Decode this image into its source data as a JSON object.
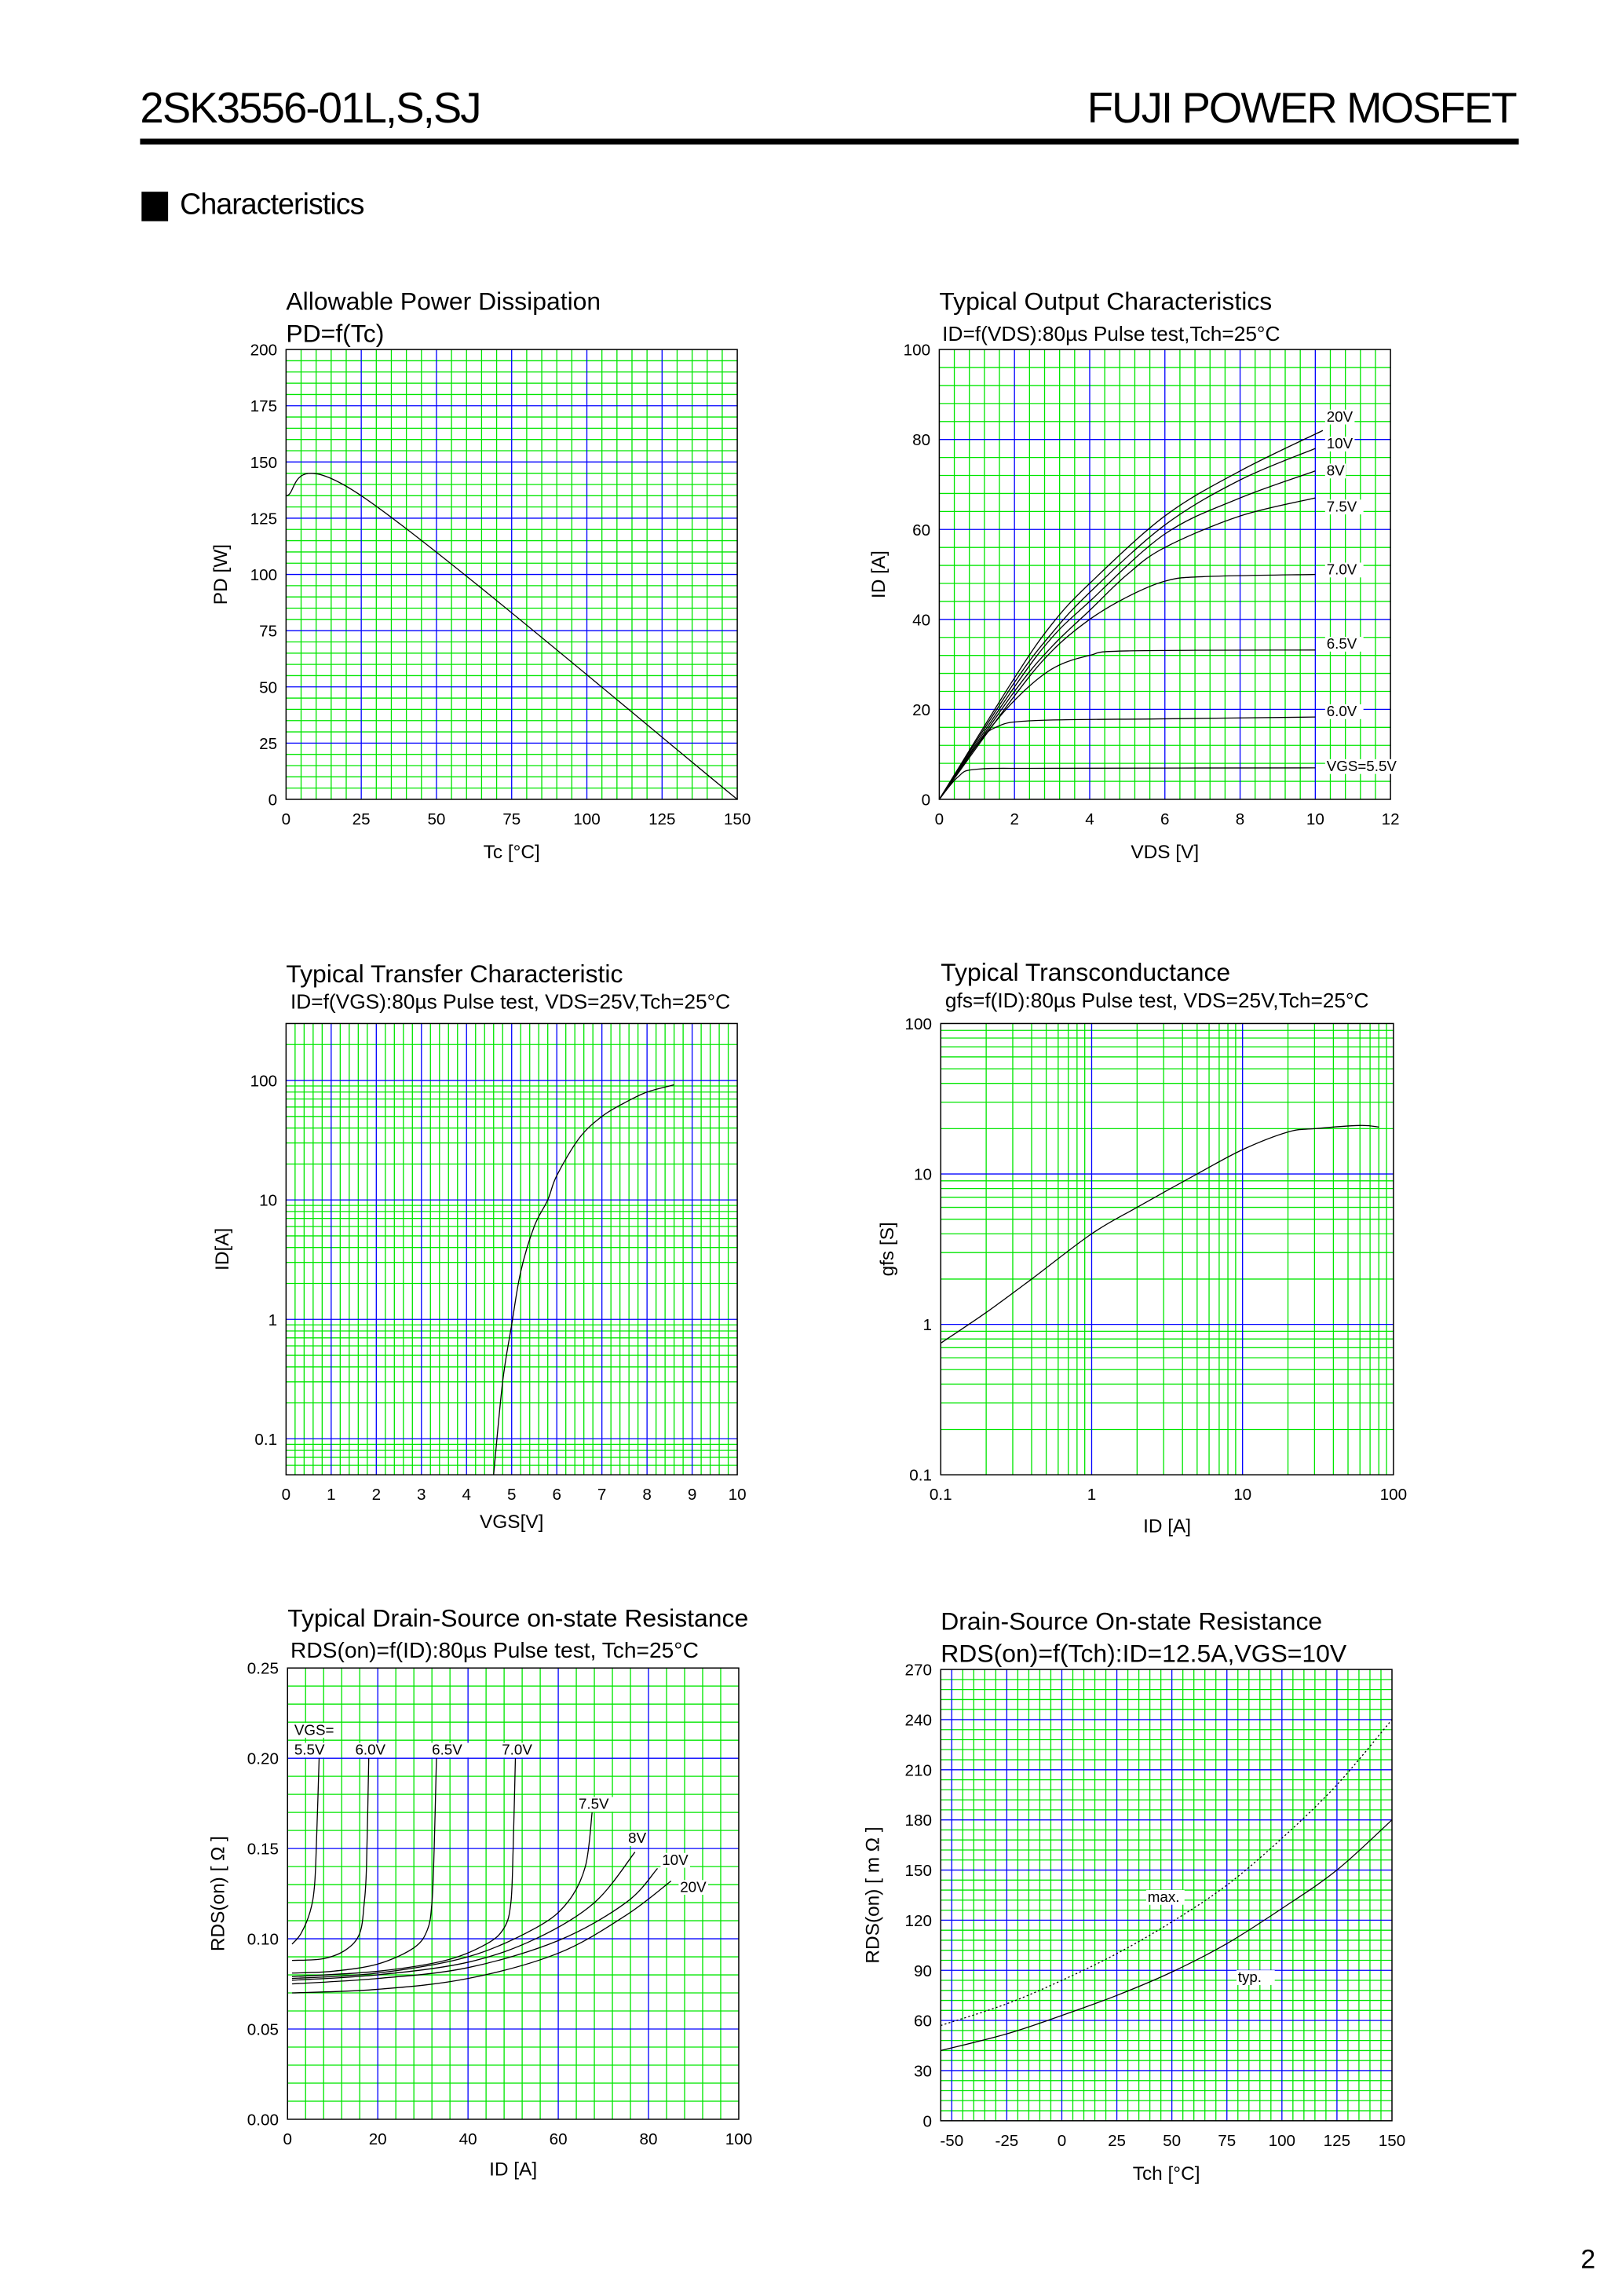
{
  "header": {
    "part_number": "2SK3556-01L,S,SJ",
    "brand": "FUJI POWER MOSFET"
  },
  "section": {
    "title": "Characteristics"
  },
  "page_number": "2",
  "colors": {
    "grid_major": "#0000ff",
    "grid_minor": "#00e600",
    "curve": "#000000"
  },
  "chart_data": [
    {
      "type": "line",
      "title": "Allowable Power Dissipation",
      "subtitle": "PD=f(Tc)",
      "xlabel": "Tc [°C]",
      "ylabel": "PD [W]",
      "xscale": "linear",
      "yscale": "linear",
      "xlim": [
        0,
        150
      ],
      "ylim": [
        0,
        200
      ],
      "grid": {
        "x_major": 25,
        "x_minor": 5,
        "y_major": 25,
        "y_minor": 5
      },
      "xticks": [
        "0",
        "25",
        "50",
        "75",
        "100",
        "125",
        "150"
      ],
      "yticks": [
        "0",
        "25",
        "50",
        "75",
        "100",
        "125",
        "150",
        "175",
        "200"
      ],
      "series": [
        {
          "style": "solid",
          "points": [
            [
              0,
              135
            ],
            [
              25,
              135
            ],
            [
              150,
              0
            ]
          ]
        }
      ],
      "annotations": []
    },
    {
      "type": "line",
      "title": "Typical Output Characteristics",
      "subtitle": "ID=f(VDS):80µs Pulse test,Tch=25°C",
      "xlabel": "VDS [V]",
      "ylabel": "ID [A]",
      "xscale": "linear",
      "yscale": "linear",
      "xlim": [
        0,
        12
      ],
      "ylim": [
        0,
        100
      ],
      "grid": {
        "x_major": 2,
        "x_minor": 0.4,
        "y_major": 20,
        "y_minor": 4
      },
      "xticks": [
        "0",
        "2",
        "4",
        "6",
        "8",
        "10",
        "12"
      ],
      "yticks": [
        "0",
        "20",
        "40",
        "60",
        "80",
        "100"
      ],
      "series": [
        {
          "name": "VGS=5.5V",
          "style": "solid",
          "points": [
            [
              0,
              0
            ],
            [
              0.5,
              5
            ],
            [
              1,
              6.7
            ],
            [
              3,
              6.9
            ],
            [
              10,
              7
            ]
          ]
        },
        {
          "name": "6.0V",
          "style": "solid",
          "points": [
            [
              0,
              0
            ],
            [
              1,
              12
            ],
            [
              1.5,
              16
            ],
            [
              2.5,
              17.5
            ],
            [
              6,
              17.9
            ],
            [
              10,
              18.3
            ]
          ]
        },
        {
          "name": "6.5V",
          "style": "solid",
          "points": [
            [
              0,
              0
            ],
            [
              1,
              12
            ],
            [
              2,
              22
            ],
            [
              3,
              29
            ],
            [
              4,
              32
            ],
            [
              5,
              33
            ],
            [
              10,
              33.2
            ]
          ]
        },
        {
          "name": "7.0V",
          "style": "solid",
          "points": [
            [
              0,
              0
            ],
            [
              2,
              23
            ],
            [
              3,
              33
            ],
            [
              4,
              40
            ],
            [
              5,
              45
            ],
            [
              6,
              48.5
            ],
            [
              7,
              49.5
            ],
            [
              10,
              50
            ]
          ]
        },
        {
          "name": "7.5V",
          "style": "solid",
          "points": [
            [
              0,
              0
            ],
            [
              2,
              24
            ],
            [
              3,
              34
            ],
            [
              4,
              42
            ],
            [
              5,
              50
            ],
            [
              6,
              56
            ],
            [
              8,
              63
            ],
            [
              10,
              67
            ]
          ]
        },
        {
          "name": "8V",
          "style": "solid",
          "points": [
            [
              0,
              0
            ],
            [
              2,
              25
            ],
            [
              3,
              36
            ],
            [
              4,
              44
            ],
            [
              6,
              59
            ],
            [
              8,
              67
            ],
            [
              10,
              73
            ]
          ]
        },
        {
          "name": "10V",
          "style": "solid",
          "points": [
            [
              0,
              0
            ],
            [
              2,
              26
            ],
            [
              3,
              37
            ],
            [
              4,
              46
            ],
            [
              6,
              61
            ],
            [
              8,
              71
            ],
            [
              10,
              78
            ]
          ]
        },
        {
          "name": "20V",
          "style": "solid",
          "points": [
            [
              0,
              0
            ],
            [
              2,
              27
            ],
            [
              3,
              39
            ],
            [
              4,
              48
            ],
            [
              6,
              63
            ],
            [
              8,
              73
            ],
            [
              10.2,
              82
            ]
          ]
        }
      ],
      "annotations": [
        {
          "text": "20V",
          "x": 10.3,
          "y": 84
        },
        {
          "text": "10V",
          "x": 10.3,
          "y": 78
        },
        {
          "text": "8V",
          "x": 10.3,
          "y": 72
        },
        {
          "text": "7.5V",
          "x": 10.3,
          "y": 64
        },
        {
          "text": "7.0V",
          "x": 10.3,
          "y": 50
        },
        {
          "text": "6.5V",
          "x": 10.3,
          "y": 33.5
        },
        {
          "text": "6.0V",
          "x": 10.3,
          "y": 18.5
        },
        {
          "text": "VGS=5.5V",
          "x": 10.3,
          "y": 6.3
        }
      ]
    },
    {
      "type": "line",
      "title": "Typical Transfer Characteristic",
      "subtitle": "ID=f(VGS):80µs Pulse test, VDS=25V,Tch=25°C",
      "xlabel": "VGS[V]",
      "ylabel": "ID[A]",
      "xscale": "linear",
      "yscale": "log",
      "xlim": [
        0,
        10
      ],
      "ylim": [
        0.05,
        300
      ],
      "grid": {
        "x_major": 1,
        "x_minor": 0.2
      },
      "xticks": [
        "0",
        "1",
        "2",
        "3",
        "4",
        "5",
        "6",
        "7",
        "8",
        "9",
        "10"
      ],
      "yticks": [
        "0.1",
        "1",
        "10",
        "100"
      ],
      "series": [
        {
          "style": "solid",
          "points": [
            [
              4.6,
              0.05
            ],
            [
              4.8,
              0.3
            ],
            [
              5,
              0.9
            ],
            [
              5.2,
              2.5
            ],
            [
              5.5,
              6
            ],
            [
              5.8,
              10
            ],
            [
              6,
              16
            ],
            [
              6.5,
              33
            ],
            [
              7,
              50
            ],
            [
              7.5,
              65
            ],
            [
              8,
              80
            ],
            [
              8.6,
              92
            ]
          ]
        }
      ],
      "annotations": []
    },
    {
      "type": "line",
      "title": "Typical Transconductance",
      "subtitle": "gfs=f(ID):80µs Pulse test, VDS=25V,Tch=25°C",
      "xlabel": "ID [A]",
      "ylabel": "gfs [S]",
      "xscale": "log",
      "yscale": "log",
      "xlim": [
        0.1,
        100
      ],
      "ylim": [
        0.1,
        100
      ],
      "grid": {},
      "xticks": [
        "0.1",
        "1",
        "10",
        "100"
      ],
      "yticks": [
        "0.1",
        "1",
        "10",
        "100"
      ],
      "series": [
        {
          "style": "solid",
          "points": [
            [
              0.1,
              0.75
            ],
            [
              0.2,
              1.2
            ],
            [
              0.4,
              2
            ],
            [
              1,
              4
            ],
            [
              2,
              6
            ],
            [
              5,
              10
            ],
            [
              10,
              14.5
            ],
            [
              20,
              19
            ],
            [
              30,
              20
            ],
            [
              60,
              21
            ],
            [
              80,
              20.5
            ]
          ]
        }
      ],
      "annotations": []
    },
    {
      "type": "line",
      "title": "Typical Drain-Source on-state Resistance",
      "subtitle": "RDS(on)=f(ID):80µs Pulse test, Tch=25°C",
      "xlabel": "ID [A]",
      "ylabel": "RDS(on) [ Ω ]",
      "xscale": "linear",
      "yscale": "linear",
      "xlim": [
        0,
        100
      ],
      "ylim": [
        0,
        0.25
      ],
      "grid": {
        "x_major": 20,
        "x_minor": 4,
        "y_major": 0.05,
        "y_minor": 0.01
      },
      "xticks": [
        "0",
        "20",
        "40",
        "60",
        "80",
        "100"
      ],
      "yticks": [
        "0.00",
        "0.05",
        "0.10",
        "0.15",
        "0.20",
        "0.25"
      ],
      "series": [
        {
          "name": "5.5V",
          "style": "solid",
          "points": [
            [
              1,
              0.097
            ],
            [
              3,
              0.103
            ],
            [
              5,
              0.115
            ],
            [
              6,
              0.13
            ],
            [
              6.5,
              0.16
            ],
            [
              7,
              0.2
            ]
          ]
        },
        {
          "name": "6.0V",
          "style": "solid",
          "points": [
            [
              1,
              0.088
            ],
            [
              8,
              0.089
            ],
            [
              13,
              0.094
            ],
            [
              16,
              0.103
            ],
            [
              17,
              0.12
            ],
            [
              17.5,
              0.14
            ],
            [
              18,
              0.2
            ]
          ]
        },
        {
          "name": "6.5V",
          "style": "solid",
          "points": [
            [
              1,
              0.081
            ],
            [
              10,
              0.082
            ],
            [
              20,
              0.086
            ],
            [
              28,
              0.095
            ],
            [
              31,
              0.105
            ],
            [
              32,
              0.12
            ],
            [
              32.5,
              0.15
            ],
            [
              33,
              0.2
            ]
          ]
        },
        {
          "name": "7.0V",
          "style": "solid",
          "points": [
            [
              1,
              0.079
            ],
            [
              20,
              0.082
            ],
            [
              35,
              0.088
            ],
            [
              44,
              0.097
            ],
            [
              48,
              0.106
            ],
            [
              49.5,
              0.12
            ],
            [
              50,
              0.15
            ],
            [
              50.5,
              0.2
            ]
          ]
        },
        {
          "name": "7.5V",
          "style": "solid",
          "points": [
            [
              1,
              0.078
            ],
            [
              20,
              0.081
            ],
            [
              40,
              0.09
            ],
            [
              55,
              0.106
            ],
            [
              62,
              0.12
            ],
            [
              66,
              0.14
            ],
            [
              67.5,
              0.17
            ]
          ]
        },
        {
          "name": "8V",
          "style": "solid",
          "points": [
            [
              1,
              0.077
            ],
            [
              20,
              0.08
            ],
            [
              40,
              0.087
            ],
            [
              55,
              0.1
            ],
            [
              68,
              0.12
            ],
            [
              77,
              0.148
            ]
          ]
        },
        {
          "name": "10V",
          "style": "solid",
          "points": [
            [
              1,
              0.075
            ],
            [
              20,
              0.078
            ],
            [
              40,
              0.084
            ],
            [
              60,
              0.099
            ],
            [
              75,
              0.12
            ],
            [
              82,
              0.139
            ]
          ]
        },
        {
          "name": "20V",
          "style": "solid",
          "points": [
            [
              1,
              0.07
            ],
            [
              20,
              0.072
            ],
            [
              40,
              0.078
            ],
            [
              60,
              0.092
            ],
            [
              75,
              0.113
            ],
            [
              85,
              0.132
            ]
          ]
        }
      ],
      "annotations": [
        {
          "text": "VGS=",
          "x": 1.5,
          "y": 0.213
        },
        {
          "text": "5.5V",
          "x": 1.5,
          "y": 0.202
        },
        {
          "text": "6.0V",
          "x": 15,
          "y": 0.202
        },
        {
          "text": "6.5V",
          "x": 32,
          "y": 0.202
        },
        {
          "text": "7.0V",
          "x": 47.5,
          "y": 0.202
        },
        {
          "text": "7.5V",
          "x": 64.5,
          "y": 0.172
        },
        {
          "text": "8V",
          "x": 75.5,
          "y": 0.153
        },
        {
          "text": "10V",
          "x": 83,
          "y": 0.141
        },
        {
          "text": "20V",
          "x": 87,
          "y": 0.126
        }
      ]
    },
    {
      "type": "line",
      "title": "Drain-Source On-state Resistance",
      "subtitle": "RDS(on)=f(Tch):ID=12.5A,VGS=10V",
      "xlabel": "Tch [°C]",
      "ylabel": "RDS(on) [ m Ω ]",
      "xscale": "linear",
      "yscale": "linear",
      "xlim": [
        -55,
        150
      ],
      "ylim": [
        0,
        270
      ],
      "grid": {
        "x_major": 25,
        "x_minor": 5,
        "y_major": 30,
        "y_minor": 6
      },
      "xticks": [
        "-50",
        "-25",
        "0",
        "25",
        "50",
        "75",
        "100",
        "125",
        "150"
      ],
      "yticks": [
        "0",
        "30",
        "60",
        "90",
        "120",
        "150",
        "180",
        "210",
        "240",
        "270"
      ],
      "series": [
        {
          "name": "typ.",
          "style": "solid",
          "points": [
            [
              -55,
              42
            ],
            [
              -25,
              52
            ],
            [
              0,
              63
            ],
            [
              25,
              75
            ],
            [
              50,
              89
            ],
            [
              75,
              106
            ],
            [
              100,
              127
            ],
            [
              125,
              150
            ],
            [
              150,
              180
            ]
          ]
        },
        {
          "name": "max.",
          "style": "dotted",
          "points": [
            [
              -55,
              57
            ],
            [
              -25,
              70
            ],
            [
              0,
              84
            ],
            [
              25,
              100
            ],
            [
              50,
              119
            ],
            [
              75,
              141
            ],
            [
              100,
              169
            ],
            [
              125,
              201
            ],
            [
              150,
              240
            ]
          ]
        }
      ],
      "annotations": [
        {
          "text": "max.",
          "x": 39,
          "y": 131
        },
        {
          "text": "typ.",
          "x": 80,
          "y": 83
        }
      ]
    }
  ]
}
